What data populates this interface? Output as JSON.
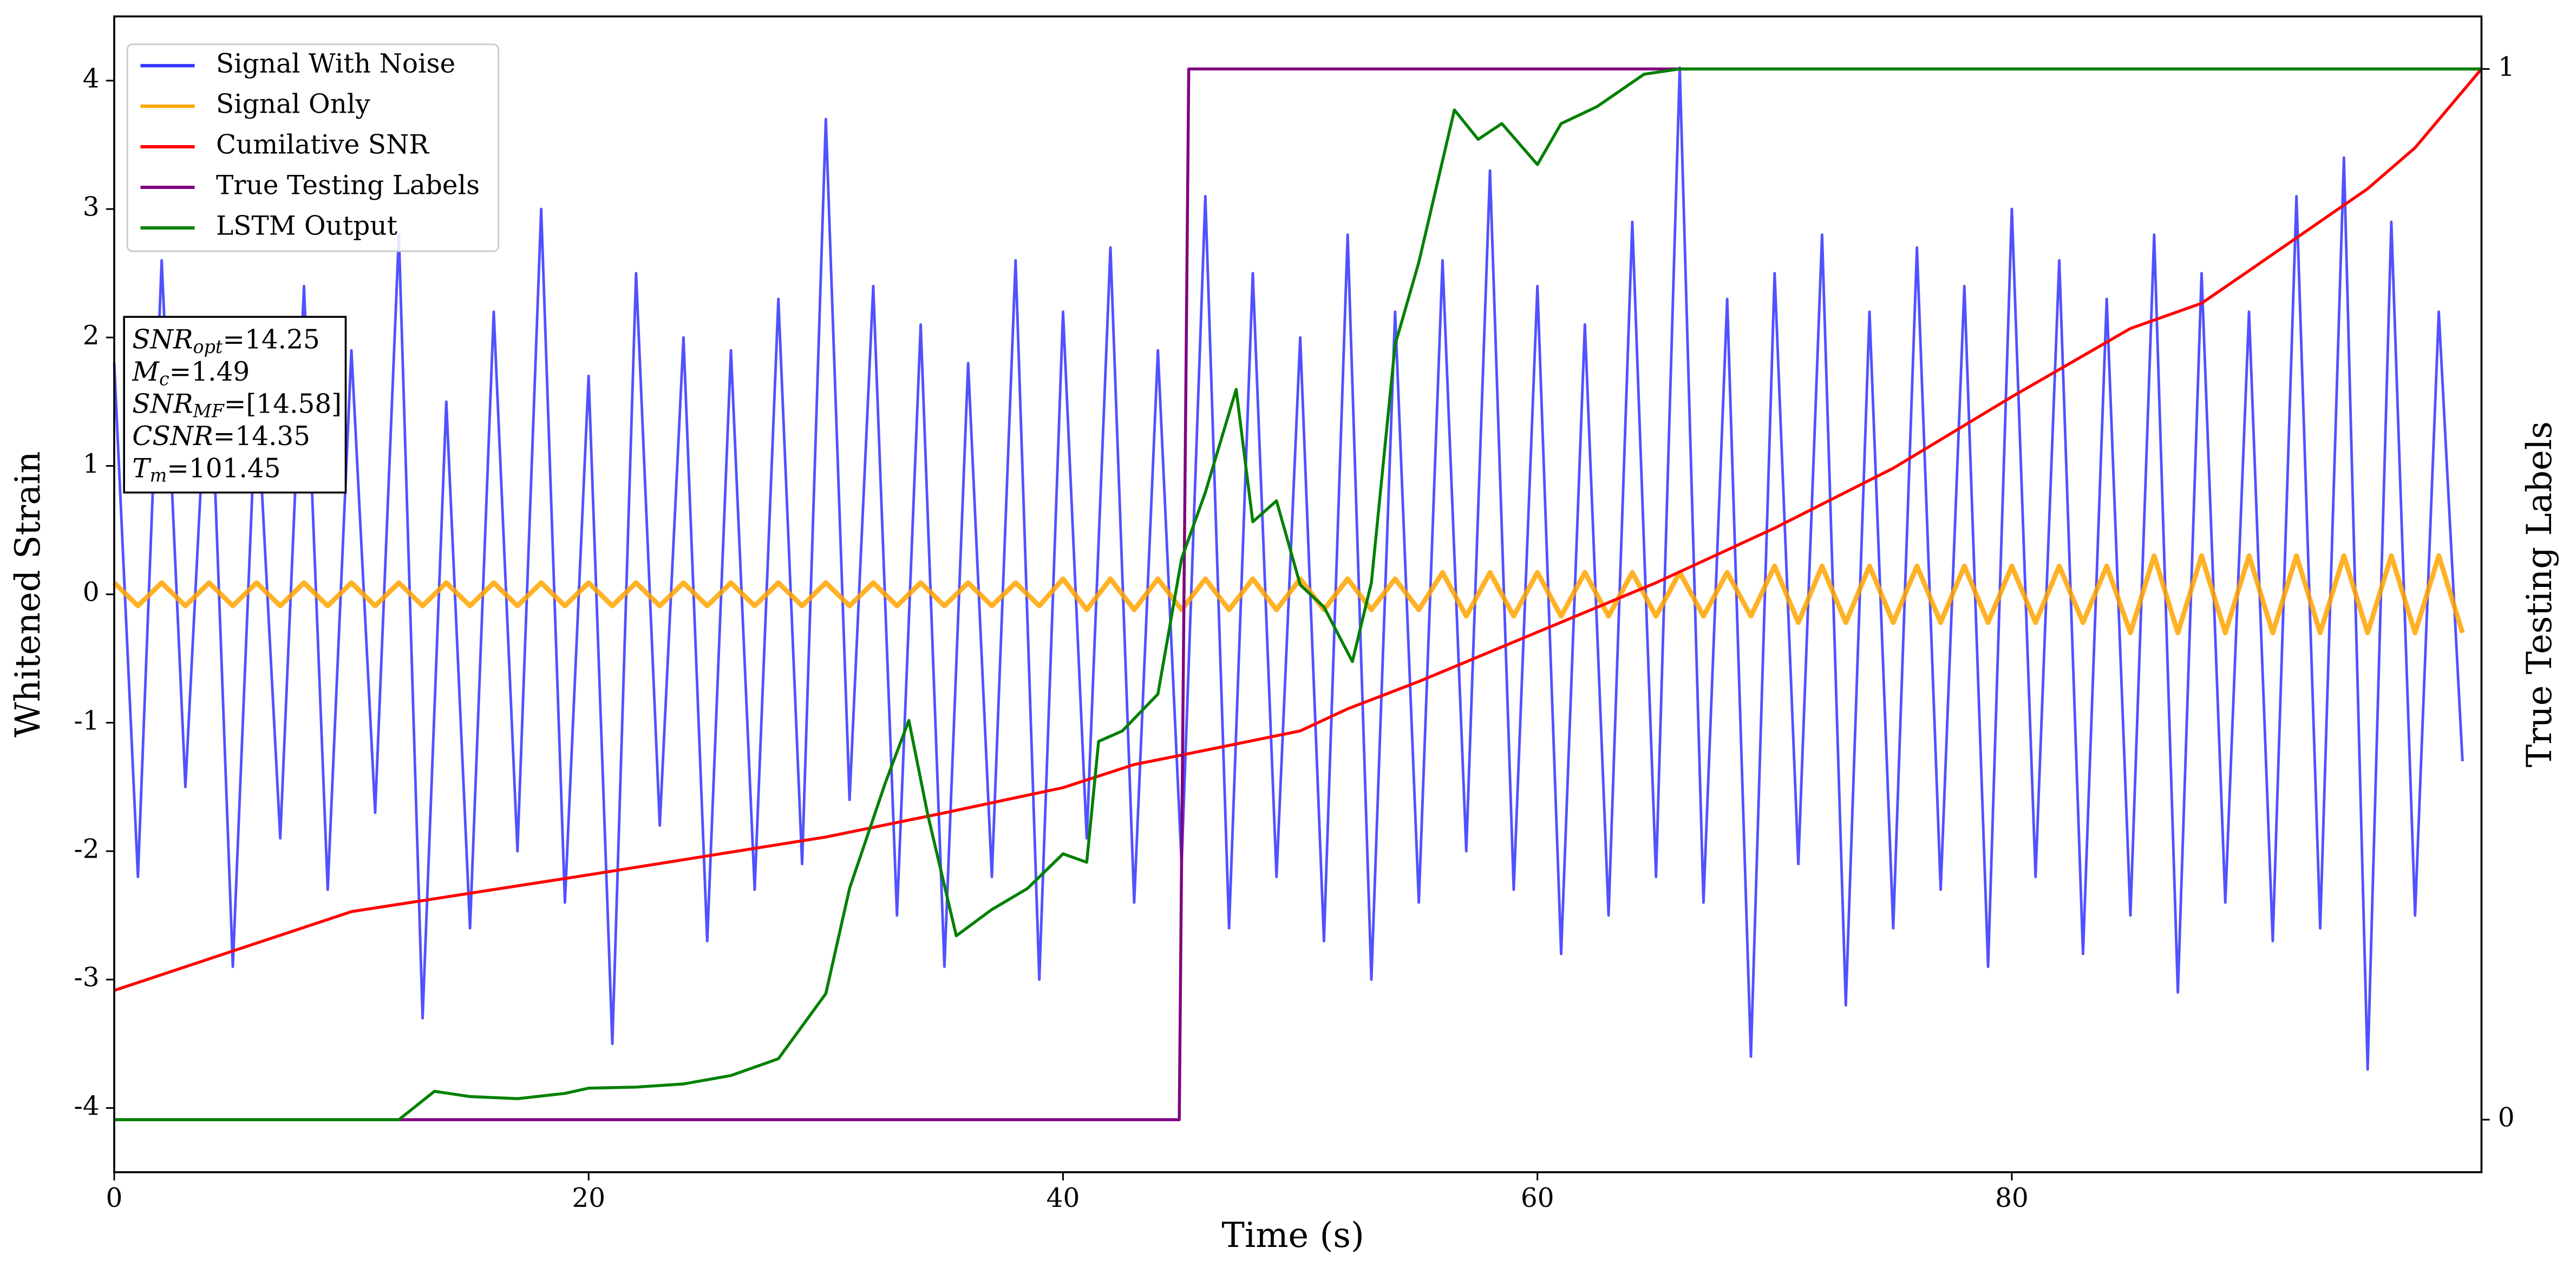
{
  "chart_data": {
    "type": "line",
    "xlabel": "Time (s)",
    "ylabel": "Whitened Strain",
    "y2label": "True Testing Labels",
    "xlim": [
      0,
      99.8
    ],
    "xticks": [
      0,
      20,
      40,
      60,
      80
    ],
    "ylim": [
      -4.5,
      4.5
    ],
    "yticks": [
      -4,
      -3,
      -2,
      -1,
      0,
      1,
      2,
      3,
      4
    ],
    "y2lim": [
      -0.05,
      1.05
    ],
    "y2ticks": [
      0,
      1
    ],
    "legend": "upper left",
    "x": [
      0,
      1,
      2,
      3,
      4,
      5,
      6,
      7,
      8,
      9,
      10,
      11,
      12,
      13,
      14,
      15,
      16,
      17,
      18,
      19,
      20,
      21,
      22,
      23,
      24,
      25,
      26,
      27,
      28,
      29,
      30,
      31,
      32,
      33,
      34,
      35,
      36,
      37,
      38,
      39,
      40,
      41,
      42,
      43,
      44,
      45,
      46,
      47,
      48,
      49,
      50,
      51,
      52,
      53,
      54,
      55,
      56,
      57,
      58,
      59,
      60,
      61,
      62,
      63,
      64,
      65,
      66,
      67,
      68,
      69,
      70,
      71,
      72,
      73,
      74,
      75,
      76,
      77,
      78,
      79,
      80,
      81,
      82,
      83,
      84,
      85,
      86,
      87,
      88,
      89,
      90,
      91,
      92,
      93,
      94,
      95,
      96,
      97,
      98,
      99
    ],
    "series": [
      {
        "name": "Signal With Noise",
        "color": "#3333ff",
        "values": [
          1.8,
          -2.2,
          2.6,
          -1.5,
          2.1,
          -2.9,
          1.6,
          -1.9,
          2.4,
          -2.3,
          1.9,
          -1.7,
          2.8,
          -3.3,
          1.5,
          -2.6,
          2.2,
          -2.0,
          3.0,
          -2.4,
          1.7,
          -3.5,
          2.5,
          -1.8,
          2.0,
          -2.7,
          1.9,
          -2.3,
          2.3,
          -2.1,
          3.7,
          -1.6,
          2.4,
          -2.5,
          2.1,
          -2.9,
          1.8,
          -2.2,
          2.6,
          -3.0,
          2.2,
          -1.9,
          2.7,
          -2.4,
          1.9,
          -2.1,
          3.1,
          -2.6,
          2.5,
          -2.2,
          2.0,
          -2.7,
          2.8,
          -3.0,
          2.2,
          -2.4,
          2.6,
          -2.0,
          3.3,
          -2.3,
          2.4,
          -2.8,
          2.1,
          -2.5,
          2.9,
          -2.2,
          4.1,
          -2.4,
          2.3,
          -3.6,
          2.5,
          -2.1,
          2.8,
          -3.2,
          2.2,
          -2.6,
          2.7,
          -2.3,
          2.4,
          -2.9,
          3.0,
          -2.2,
          2.6,
          -2.8,
          2.3,
          -2.5,
          2.8,
          -3.1,
          2.5,
          -2.4,
          2.2,
          -2.7,
          3.1,
          -2.6,
          3.4,
          -3.7,
          2.9,
          -2.5,
          2.2,
          -1.3
        ]
      },
      {
        "name": "Signal Only",
        "color": "#ffa500",
        "values": [
          0.09,
          -0.09,
          0.09,
          -0.09,
          0.09,
          -0.09,
          0.09,
          -0.09,
          0.09,
          -0.09,
          0.09,
          -0.09,
          0.09,
          -0.09,
          0.09,
          -0.09,
          0.09,
          -0.09,
          0.09,
          -0.09,
          0.09,
          -0.09,
          0.09,
          -0.09,
          0.09,
          -0.09,
          0.09,
          -0.09,
          0.09,
          -0.09,
          0.09,
          -0.09,
          0.09,
          -0.09,
          0.09,
          -0.09,
          0.09,
          -0.09,
          0.09,
          -0.09,
          0.12,
          -0.12,
          0.12,
          -0.12,
          0.12,
          -0.12,
          0.12,
          -0.12,
          0.12,
          -0.12,
          0.12,
          -0.12,
          0.12,
          -0.12,
          0.12,
          -0.12,
          0.17,
          -0.17,
          0.17,
          -0.17,
          0.17,
          -0.17,
          0.17,
          -0.17,
          0.17,
          -0.17,
          0.17,
          -0.17,
          0.17,
          -0.17,
          0.22,
          -0.22,
          0.22,
          -0.22,
          0.22,
          -0.22,
          0.22,
          -0.22,
          0.22,
          -0.22,
          0.22,
          -0.22,
          0.22,
          -0.22,
          0.22,
          -0.3,
          0.3,
          -0.3,
          0.3,
          -0.3,
          0.3,
          -0.3,
          0.3,
          -0.3,
          0.3,
          -0.3,
          0.3,
          -0.3,
          0.3,
          -0.3
        ]
      },
      {
        "name": "Cumilative SNR",
        "color": "#ff0000",
        "axis": "y2",
        "x": [
          0,
          10,
          20,
          30,
          35,
          40,
          43,
          45,
          50,
          52,
          55,
          60,
          65,
          70,
          75,
          80,
          85,
          88,
          90,
          95,
          97,
          99.8
        ],
        "values": [
          0.123,
          0.198,
          0.233,
          0.269,
          0.292,
          0.316,
          0.338,
          0.347,
          0.37,
          0.391,
          0.417,
          0.464,
          0.511,
          0.563,
          0.62,
          0.688,
          0.753,
          0.777,
          0.808,
          0.886,
          0.925,
          1.0
        ]
      },
      {
        "name": "True Testing Labels",
        "color": "#800080",
        "axis": "y2",
        "x": [
          0,
          44.9,
          45.3,
          99.8
        ],
        "values": [
          0,
          0,
          1,
          1
        ]
      },
      {
        "name": "LSTM Output",
        "color": "#008000",
        "axis": "y2",
        "x": [
          0,
          12,
          13.5,
          15,
          17,
          19,
          20,
          22,
          24,
          26,
          28,
          30,
          31,
          32.5,
          33.5,
          34.3,
          35.5,
          37,
          38.5,
          40,
          41,
          41.5,
          42.5,
          44,
          45,
          46,
          47.3,
          48,
          49,
          50,
          51,
          52.2,
          53,
          54,
          55,
          56.5,
          57.5,
          58.5,
          60,
          61,
          62.5,
          64.5,
          66,
          99.8
        ],
        "values": [
          0,
          0,
          0.027,
          0.022,
          0.02,
          0.025,
          0.03,
          0.031,
          0.034,
          0.042,
          0.058,
          0.12,
          0.22,
          0.32,
          0.38,
          0.29,
          0.175,
          0.2,
          0.22,
          0.253,
          0.245,
          0.36,
          0.37,
          0.405,
          0.534,
          0.597,
          0.695,
          0.569,
          0.589,
          0.509,
          0.488,
          0.436,
          0.511,
          0.7375,
          0.816,
          0.961,
          0.933,
          0.948,
          0.909,
          0.948,
          0.964,
          0.995,
          1,
          1
        ]
      }
    ],
    "annotation": [
      {
        "symbol": "SNR",
        "sub": "opt",
        "text": "=14.25"
      },
      {
        "symbol": "M",
        "sub": "c",
        "text": "=1.49"
      },
      {
        "symbol": "SNR",
        "sub": "MF",
        "text": "=[14.58]"
      },
      {
        "symbol": "CSNR",
        "text": "=14.35"
      },
      {
        "symbol": "T",
        "sub": "m",
        "text": "=101.45"
      }
    ]
  }
}
